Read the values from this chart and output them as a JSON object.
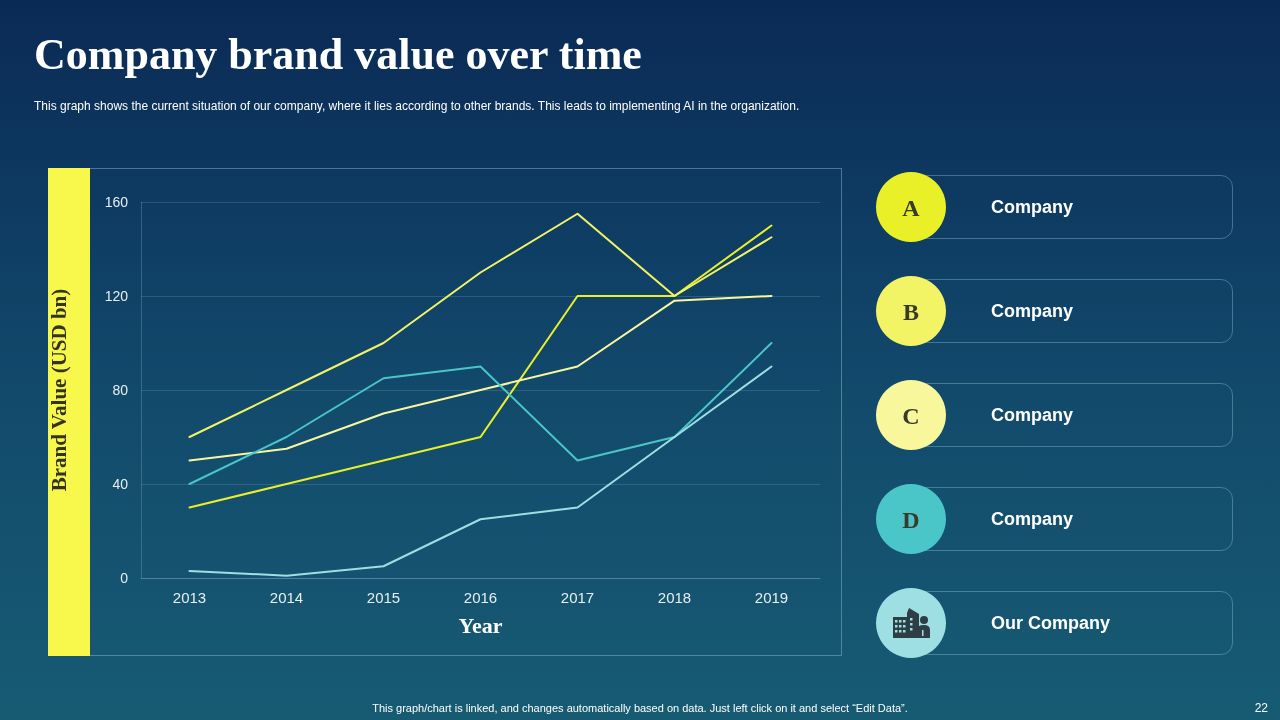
{
  "chart_data": {
    "type": "line",
    "title": "Company brand value over time",
    "subtitle": "This graph shows the current situation of our company, where it lies according to other brands. This leads to implementing AI in the organization.",
    "xlabel": "Year",
    "ylabel": "Brand Value (USD bn)",
    "categories": [
      "2013",
      "2014",
      "2015",
      "2016",
      "2017",
      "2018",
      "2019"
    ],
    "series": [
      {
        "name": "Company",
        "color": "#eaf028",
        "values": [
          30,
          40,
          50,
          60,
          120,
          120,
          150
        ]
      },
      {
        "name": "Company",
        "color": "#f2f466",
        "values": [
          60,
          80,
          100,
          130,
          155,
          120,
          145
        ]
      },
      {
        "name": "Company",
        "color": "#f9f79c",
        "values": [
          50,
          55,
          70,
          80,
          90,
          118,
          120
        ]
      },
      {
        "name": "Company",
        "color": "#4ac6c8",
        "values": [
          40,
          60,
          85,
          90,
          50,
          60,
          100
        ]
      },
      {
        "name": "Our Company",
        "color": "#9ddfe2",
        "values": [
          3,
          1,
          5,
          25,
          30,
          60,
          90
        ]
      }
    ],
    "ylim": [
      0,
      160
    ],
    "yticks": [
      0,
      40,
      80,
      120,
      160
    ],
    "grid": "y",
    "legend": "right",
    "marker": "none",
    "line_style": "solid",
    "annotations": [
      "This graph/chart is linked, and changes automatically based on data. Just left click on it and select “Edit Data”.",
      "22",
      "A",
      "B",
      "C",
      "D"
    ]
  }
}
